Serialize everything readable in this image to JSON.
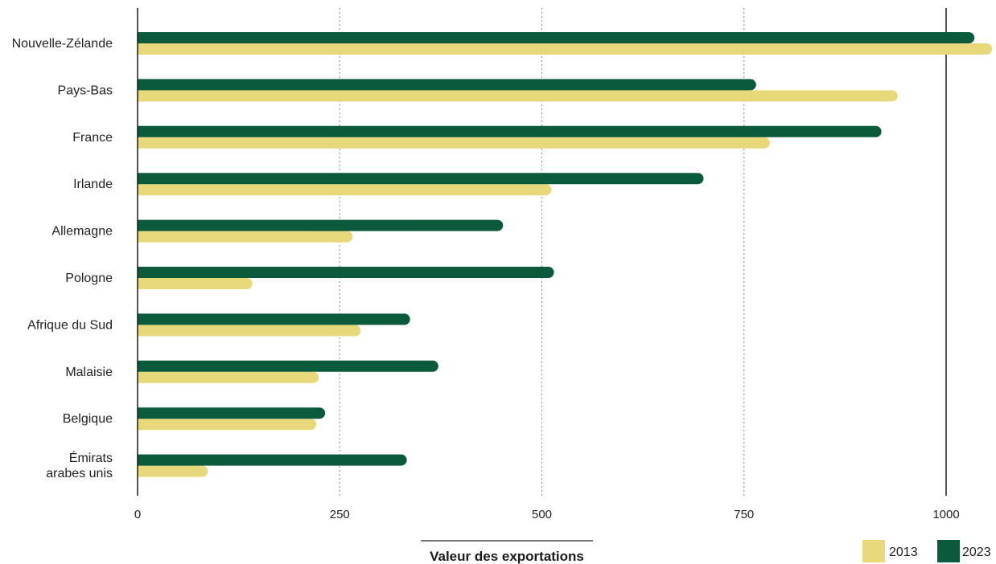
{
  "chart_data": {
    "type": "bar",
    "orientation": "horizontal",
    "title": "",
    "xlabel": "Valeur des exportations",
    "ylabel": "",
    "categories": [
      [
        "Nouvelle-Zélande"
      ],
      [
        "Pays-Bas"
      ],
      [
        "France"
      ],
      [
        "Irlande"
      ],
      [
        "Allemagne"
      ],
      [
        "Pologne"
      ],
      [
        "Afrique du Sud"
      ],
      [
        "Malaisie"
      ],
      [
        "Belgique"
      ],
      [
        "Émirats",
        "arabes unis"
      ]
    ],
    "series": [
      {
        "name": "2023",
        "color": "#0b5a3c",
        "values": [
          1035,
          765,
          920,
          700,
          452,
          515,
          337,
          372,
          232,
          333
        ]
      },
      {
        "name": "2013",
        "color": "#e7d97a",
        "values": [
          1057,
          940,
          782,
          512,
          266,
          142,
          276,
          224,
          221,
          87
        ]
      }
    ],
    "xlim": [
      0,
      1057
    ],
    "xticks": [
      0,
      250,
      500,
      750,
      1000
    ],
    "xtick_labels": [
      "0",
      "250",
      "500",
      "750",
      "1000"
    ],
    "grid": "vertical-dotted",
    "legend": {
      "placement": "bottom-right",
      "order": [
        "2013",
        "2023"
      ]
    }
  }
}
